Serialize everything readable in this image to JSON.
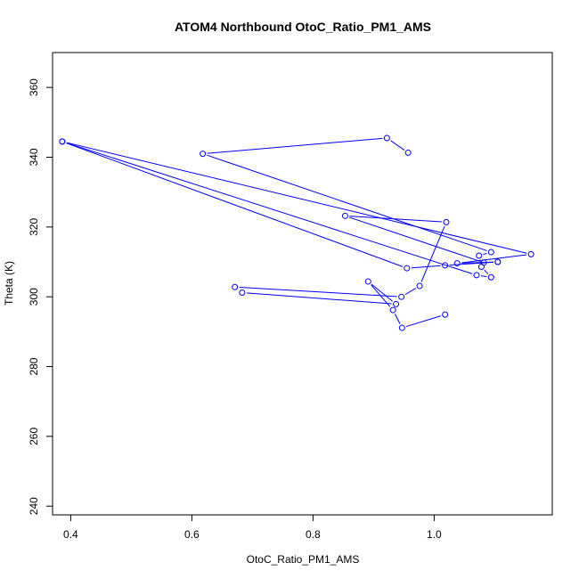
{
  "chart_data": {
    "type": "line",
    "title": "ATOM4 Northbound OtoC_Ratio_PM1_AMS",
    "xlabel": "OtoC_Ratio_PM1_AMS",
    "ylabel": "Theta (K)",
    "xlim": [
      0.37,
      1.195
    ],
    "ylim": [
      237.5,
      370
    ],
    "xticks": [
      0.4,
      0.6,
      0.8,
      1.0
    ],
    "xtick_labels": [
      "0.4",
      "0.6",
      "0.8",
      "1.0"
    ],
    "yticks": [
      240,
      260,
      280,
      300,
      320,
      340,
      360
    ],
    "ytick_labels": [
      "240",
      "260",
      "280",
      "300",
      "320",
      "340",
      "360"
    ],
    "line_color": "#0000ff",
    "marker": "open-circle",
    "grid": false,
    "series": [
      {
        "points": [
          [
            1.018,
            294.9
          ],
          [
            0.947,
            291.1
          ],
          [
            0.932,
            296.2
          ],
          [
            0.891,
            304.4
          ],
          [
            0.937,
            297.9
          ],
          [
            0.683,
            301.2
          ],
          [
            0.671,
            302.8
          ],
          [
            0.946,
            300.0
          ],
          [
            0.976,
            303.1
          ],
          [
            1.02,
            321.4
          ],
          [
            0.853,
            323.2
          ],
          [
            1.082,
            309.8
          ],
          [
            1.105,
            310.0
          ],
          [
            1.038,
            309.6
          ],
          [
            1.16,
            312.2
          ],
          [
            0.386,
            344.5
          ],
          [
            1.07,
            306.2
          ],
          [
            1.094,
            305.6
          ],
          [
            1.078,
            308.6
          ],
          [
            1.074,
            311.8
          ],
          [
            1.094,
            312.8
          ],
          [
            0.618,
            341.0
          ],
          [
            0.922,
            345.5
          ],
          [
            0.957,
            341.3
          ]
        ]
      },
      {
        "points": [
          [
            0.386,
            344.5
          ],
          [
            0.955,
            308.2
          ],
          [
            1.018,
            309.0
          ],
          [
            1.105,
            310.0
          ]
        ]
      }
    ]
  }
}
